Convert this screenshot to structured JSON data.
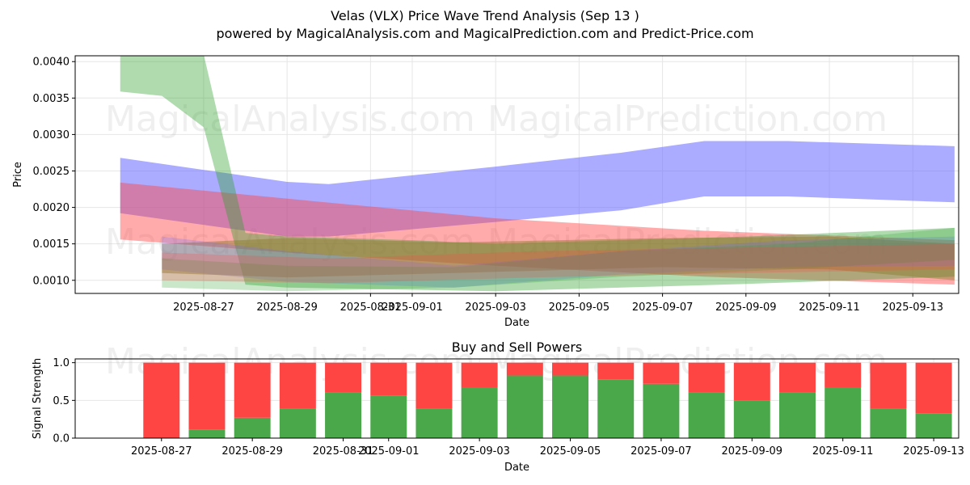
{
  "title": "Velas (VLX) Price Wave Trend Analysis (Sep 13 )",
  "subtitle": "powered by MagicalAnalysis.com and MagicalPrediction.com and Predict-Price.com",
  "watermarks": [
    "MagicalAnalysis.com",
    "MagicalPrediction.com"
  ],
  "colors": {
    "blue": "#6666ff",
    "green": "#2ca02c",
    "red": "#ff4444",
    "olive": "#8c7a2a",
    "buy": "#4aa84a",
    "sell": "#ff4444"
  },
  "chart_data": [
    {
      "type": "area",
      "title": "",
      "xlabel": "Date",
      "ylabel": "Price",
      "x_ticks": [
        "2025-08-27",
        "2025-08-29",
        "2025-08-31",
        "2025-09-01",
        "2025-09-03",
        "2025-09-05",
        "2025-09-07",
        "2025-09-09",
        "2025-09-11",
        "2025-09-13"
      ],
      "y_ticks": [
        "0.0010",
        "0.0015",
        "0.0020",
        "0.0025",
        "0.0030",
        "0.0035",
        "0.0040"
      ],
      "xlim": [
        "2025-08-24",
        "2025-09-14"
      ],
      "ylim": [
        0.00082,
        0.00408
      ],
      "grid": true,
      "series": [
        {
          "color": "blue",
          "opacity": 0.55,
          "x": [
            "2025-08-25",
            "2025-08-29",
            "2025-08-30",
            "2025-09-03",
            "2025-09-06",
            "2025-09-08",
            "2025-09-10",
            "2025-09-14"
          ],
          "upper": [
            0.00268,
            0.00235,
            0.00232,
            0.00256,
            0.00275,
            0.00291,
            0.00291,
            0.00284
          ],
          "lower": [
            0.00192,
            0.0016,
            0.0016,
            0.0018,
            0.00196,
            0.00215,
            0.00215,
            0.00207
          ]
        },
        {
          "color": "red",
          "opacity": 0.45,
          "x": [
            "2025-08-25",
            "2025-08-29",
            "2025-09-03",
            "2025-09-08",
            "2025-09-14"
          ],
          "upper": [
            0.00234,
            0.00212,
            0.00185,
            0.00168,
            0.00155
          ],
          "lower": [
            0.00156,
            0.00138,
            0.0012,
            0.00105,
            0.00094
          ]
        },
        {
          "color": "green",
          "opacity": 0.38,
          "x": [
            "2025-08-25",
            "2025-08-26",
            "2025-08-27",
            "2025-08-28",
            "2025-08-29",
            "2025-09-01",
            "2025-09-03",
            "2025-09-06",
            "2025-09-09",
            "2025-09-14"
          ],
          "upper": [
            0.0044,
            0.0044,
            0.0041,
            0.00165,
            0.0016,
            0.00155,
            0.0015,
            0.00155,
            0.0016,
            0.00172
          ],
          "lower": [
            0.00359,
            0.00353,
            0.0031,
            0.00094,
            0.0009,
            0.00087,
            0.00085,
            0.0009,
            0.00095,
            0.00105
          ]
        },
        {
          "color": "olive",
          "opacity": 0.45,
          "x": [
            "2025-08-26",
            "2025-08-29",
            "2025-09-02",
            "2025-09-07",
            "2025-09-11",
            "2025-09-14"
          ],
          "upper": [
            0.0015,
            0.00158,
            0.00152,
            0.00158,
            0.0016,
            0.0015
          ],
          "lower": [
            0.0011,
            0.00104,
            0.0011,
            0.00118,
            0.00115,
            0.001
          ]
        },
        {
          "color": "blue",
          "opacity": 0.25,
          "x": [
            "2025-08-26",
            "2025-08-29",
            "2025-09-02",
            "2025-09-06",
            "2025-09-10",
            "2025-09-14"
          ],
          "upper": [
            0.0016,
            0.0014,
            0.0012,
            0.0014,
            0.00155,
            0.0016
          ],
          "lower": [
            0.00115,
            0.00098,
            0.0009,
            0.00108,
            0.00118,
            0.0012
          ]
        },
        {
          "color": "green",
          "opacity": 0.25,
          "x": [
            "2025-08-26",
            "2025-08-29",
            "2025-09-02",
            "2025-09-06",
            "2025-09-10",
            "2025-09-14"
          ],
          "upper": [
            0.0013,
            0.0012,
            0.00118,
            0.0014,
            0.0015,
            0.00172
          ],
          "lower": [
            0.0009,
            0.00085,
            0.0009,
            0.00105,
            0.00115,
            0.00128
          ]
        },
        {
          "color": "red",
          "opacity": 0.25,
          "x": [
            "2025-08-26",
            "2025-08-30",
            "2025-09-04",
            "2025-09-09",
            "2025-09-14"
          ],
          "upper": [
            0.00138,
            0.0013,
            0.0014,
            0.00145,
            0.0015
          ],
          "lower": [
            0.001,
            0.00096,
            0.00104,
            0.0011,
            0.00115
          ]
        }
      ]
    },
    {
      "type": "bar",
      "title": "Buy and Sell Powers",
      "xlabel": "Date",
      "ylabel": "Signal Strength",
      "x_ticks": [
        "2025-08-27",
        "2025-08-29",
        "2025-08-31",
        "2025-09-01",
        "2025-09-03",
        "2025-09-05",
        "2025-09-07",
        "2025-09-09",
        "2025-09-11",
        "2025-09-13"
      ],
      "y_ticks": [
        "0.0",
        "0.5",
        "1.0"
      ],
      "ylim": [
        0,
        1.05
      ],
      "grid": true,
      "categories": [
        "2025-08-27",
        "2025-08-28",
        "2025-08-29",
        "2025-08-30",
        "2025-08-31",
        "2025-09-01",
        "2025-09-02",
        "2025-09-03",
        "2025-09-04",
        "2025-09-05",
        "2025-09-06",
        "2025-09-07",
        "2025-09-08",
        "2025-09-09",
        "2025-09-10",
        "2025-09-11",
        "2025-09-12",
        "2025-09-13"
      ],
      "series": [
        {
          "name": "Buy",
          "values": [
            0.0,
            0.11,
            0.27,
            0.39,
            0.61,
            0.56,
            0.39,
            0.67,
            0.83,
            0.83,
            0.78,
            0.72,
            0.61,
            0.5,
            0.61,
            0.67,
            0.39,
            0.33
          ]
        },
        {
          "name": "Sell",
          "values": [
            1.0,
            0.89,
            0.73,
            0.61,
            0.39,
            0.44,
            0.61,
            0.33,
            0.17,
            0.17,
            0.22,
            0.28,
            0.39,
            0.5,
            0.39,
            0.33,
            0.61,
            0.67
          ]
        }
      ]
    }
  ]
}
